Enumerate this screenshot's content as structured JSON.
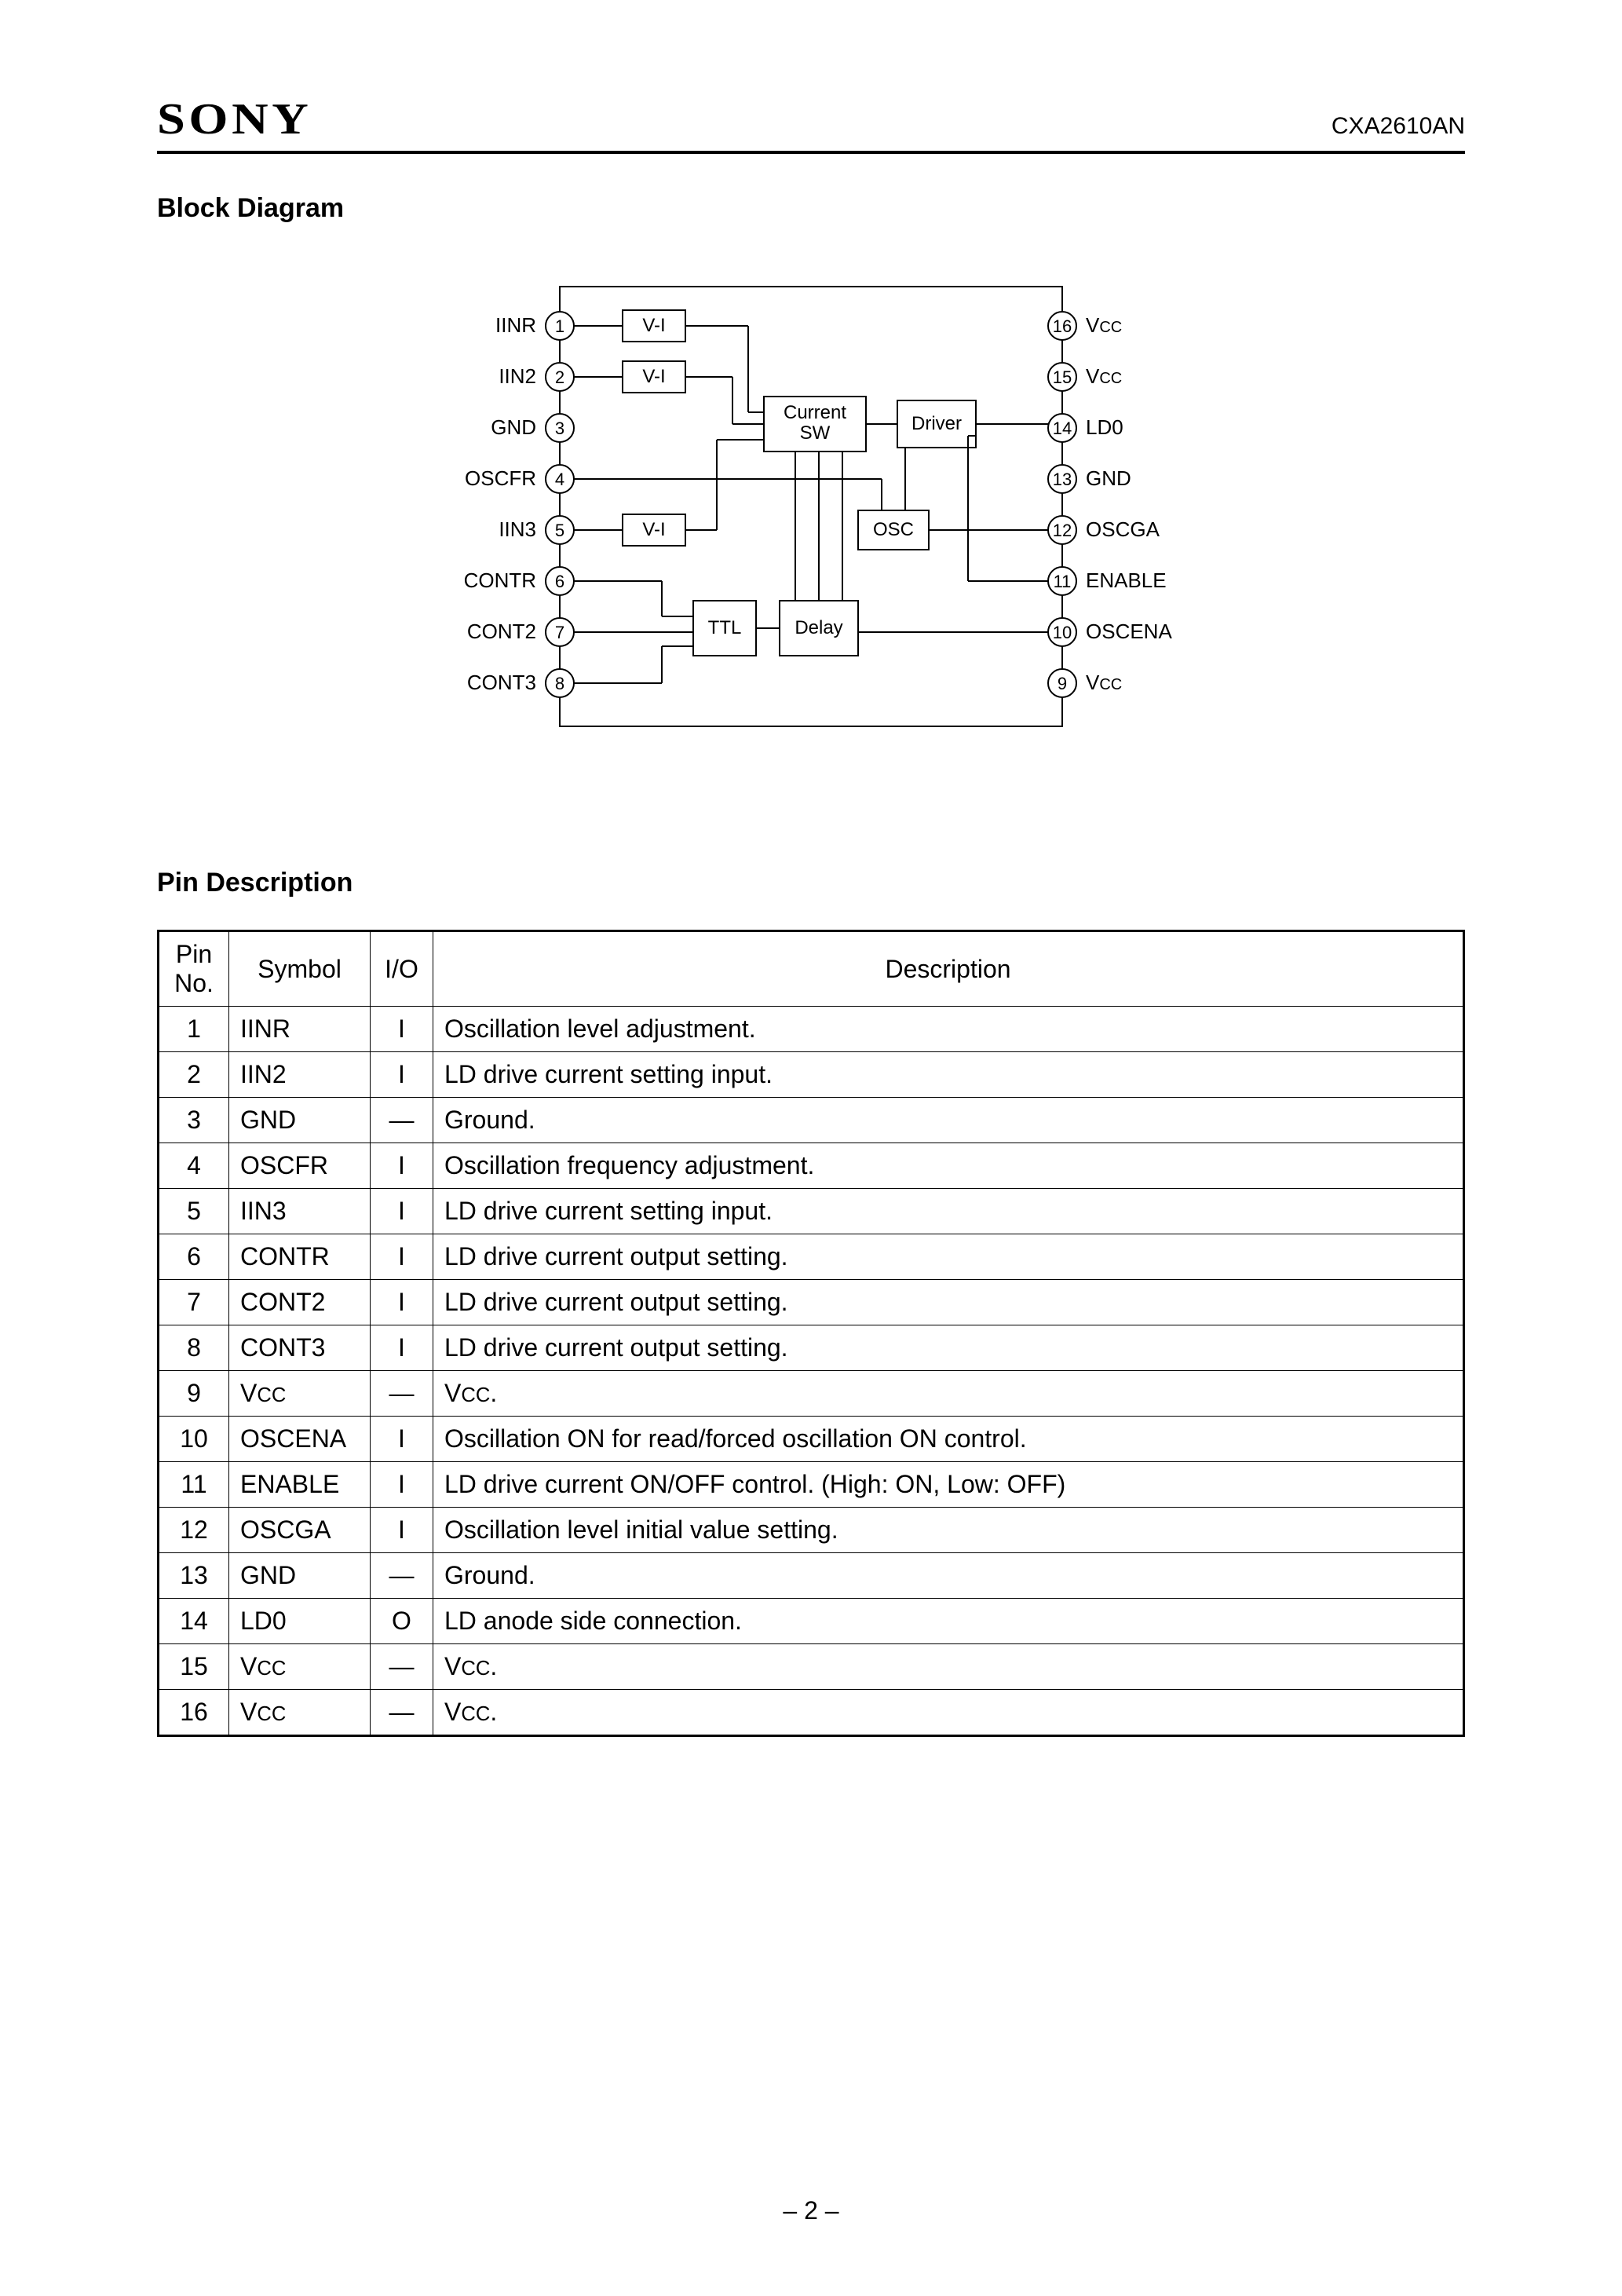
{
  "header": {
    "logo": "SONY",
    "part_number": "CXA2610AN"
  },
  "sections": {
    "block_diagram_title": "Block Diagram",
    "pin_description_title": "Pin Description"
  },
  "block_diagram": {
    "left_pins": [
      {
        "num": "1",
        "label": "IINR"
      },
      {
        "num": "2",
        "label": "IIN2"
      },
      {
        "num": "3",
        "label": "GND"
      },
      {
        "num": "4",
        "label": "OSCFR"
      },
      {
        "num": "5",
        "label": "IIN3"
      },
      {
        "num": "6",
        "label": "CONTR"
      },
      {
        "num": "7",
        "label": "CONT2"
      },
      {
        "num": "8",
        "label": "CONT3"
      }
    ],
    "right_pins": [
      {
        "num": "16",
        "label": "Vcc"
      },
      {
        "num": "15",
        "label": "Vcc"
      },
      {
        "num": "14",
        "label": "LD0"
      },
      {
        "num": "13",
        "label": "GND"
      },
      {
        "num": "12",
        "label": "OSCGA"
      },
      {
        "num": "11",
        "label": "ENABLE"
      },
      {
        "num": "10",
        "label": "OSCENA"
      },
      {
        "num": "9",
        "label": "Vcc"
      }
    ],
    "blocks": {
      "vi1": "V-I",
      "vi2": "V-I",
      "vi3": "V-I",
      "current_sw_l1": "Current",
      "current_sw_l2": "SW",
      "driver": "Driver",
      "osc": "OSC",
      "ttl": "TTL",
      "delay": "Delay"
    },
    "style": {
      "outline_color": "#000000",
      "stroke_width": 2,
      "pin_circle_r": 18,
      "font_size": 26,
      "block_font_size": 24,
      "background": "#ffffff"
    }
  },
  "pin_table": {
    "columns": [
      "Pin\nNo.",
      "Symbol",
      "I/O",
      "Description"
    ],
    "rows": [
      [
        "1",
        "IINR",
        "I",
        "Oscillation level adjustment."
      ],
      [
        "2",
        "IIN2",
        "I",
        "LD drive current setting input."
      ],
      [
        "3",
        "GND",
        "—",
        "Ground."
      ],
      [
        "4",
        "OSCFR",
        "I",
        "Oscillation frequency adjustment."
      ],
      [
        "5",
        "IIN3",
        "I",
        "LD drive current setting input."
      ],
      [
        "6",
        "CONTR",
        "I",
        "LD drive current output setting."
      ],
      [
        "7",
        "CONT2",
        "I",
        "LD drive current output setting."
      ],
      [
        "8",
        "CONT3",
        "I",
        "LD drive current output setting."
      ],
      [
        "9",
        "Vcc",
        "—",
        "Vcc."
      ],
      [
        "10",
        "OSCENA",
        "I",
        "Oscillation ON for read/forced oscillation ON control."
      ],
      [
        "11",
        "ENABLE",
        "I",
        "LD drive current ON/OFF control. (High: ON, Low: OFF)"
      ],
      [
        "12",
        "OSCGA",
        "I",
        "Oscillation level initial value setting."
      ],
      [
        "13",
        "GND",
        "—",
        "Ground."
      ],
      [
        "14",
        "LD0",
        "O",
        "LD anode side connection."
      ],
      [
        "15",
        "Vcc",
        "—",
        "Vcc."
      ],
      [
        "16",
        "Vcc",
        "—",
        "Vcc."
      ]
    ]
  },
  "footer": {
    "page_number": "– 2 –"
  }
}
